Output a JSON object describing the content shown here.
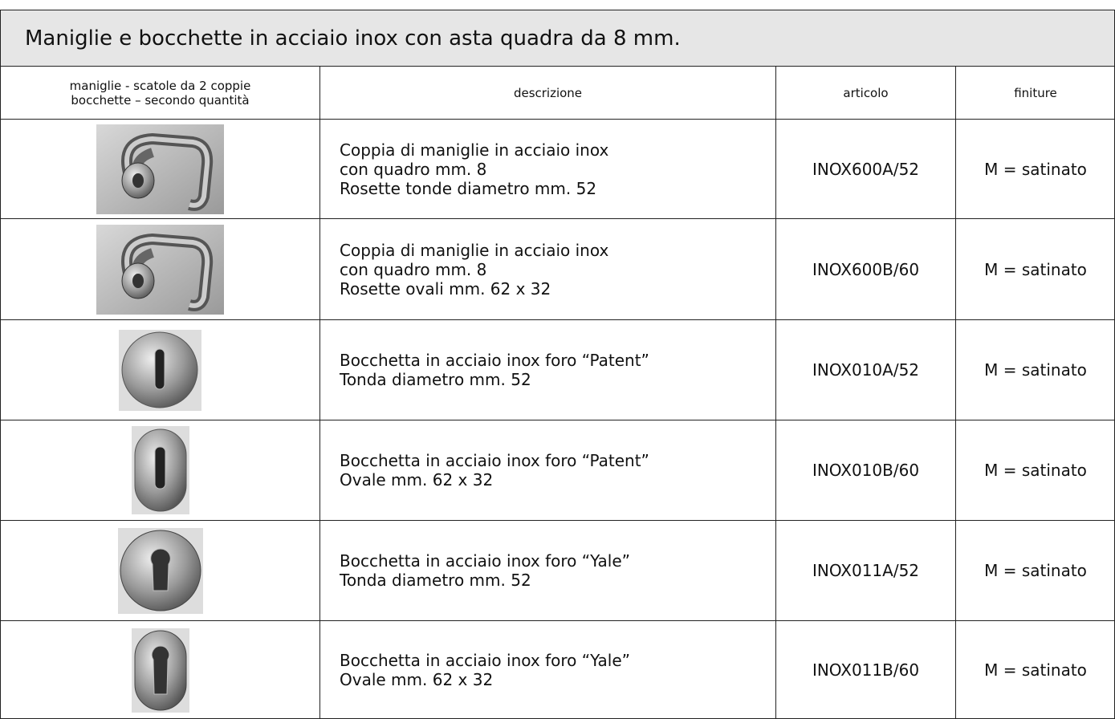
{
  "header": {
    "title": "Maniglie e bocchette in acciaio inox con asta quadra da 8 mm."
  },
  "table": {
    "columns": [
      [
        "maniglie - scatole da 2 coppie",
        "bocchette – secondo quantità"
      ],
      "descrizione",
      "articolo",
      "finiture"
    ],
    "rows": [
      {
        "description": [
          "Coppia di maniglie in acciaio inox",
          "con quadro mm. 8",
          "Rosette tonde diametro mm. 52"
        ],
        "article": "INOX600A/52",
        "finish": "M = satinato"
      },
      {
        "description": [
          "Coppia di maniglie in acciaio inox",
          "con quadro mm. 8",
          "Rosette ovali mm. 62 x 32"
        ],
        "article": "INOX600B/60",
        "finish": "M = satinato"
      },
      {
        "description": [
          "Bocchetta in acciaio inox foro “Patent”",
          "Tonda diametro mm. 52"
        ],
        "article": "INOX010A/52",
        "finish": "M = satinato"
      },
      {
        "description": [
          "Bocchetta in acciaio inox foro “Patent”",
          "Ovale  mm. 62 x 32"
        ],
        "article": "INOX010B/60",
        "finish": "M = satinato"
      },
      {
        "description": [
          "Bocchetta in acciaio inox foro “Yale”",
          "Tonda diametro mm. 52"
        ],
        "article": "INOX011A/52",
        "finish": "M = satinato"
      },
      {
        "description": [
          "Bocchetta in acciaio inox foro “Yale”",
          "Ovale  mm. 62 x 32"
        ],
        "article": "INOX011B/60",
        "finish": "M = satinato"
      }
    ]
  }
}
